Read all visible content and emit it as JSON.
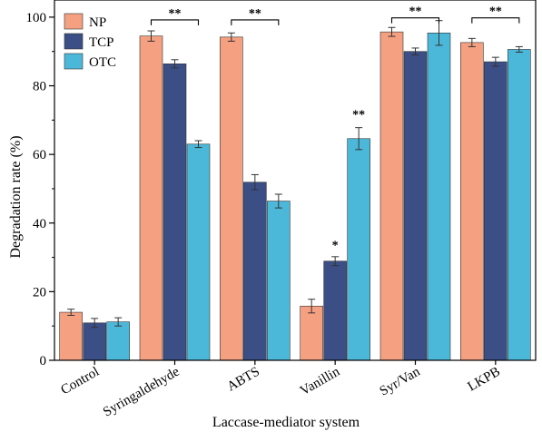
{
  "chart_data": {
    "type": "bar",
    "xlabel": "Laccase-mediator system",
    "ylabel": "Degradation rate (%)",
    "ylim": [
      0,
      105
    ],
    "yticks": [
      0,
      20,
      40,
      60,
      80,
      100
    ],
    "grid": false,
    "legend_position": "top-left",
    "categories": [
      "Control",
      "Syringaldehyde",
      "ABTS",
      "Vanillin",
      "Syr/Van",
      "LKPB"
    ],
    "series": [
      {
        "name": "NP",
        "color": "#f4a081",
        "values": [
          14.0,
          94.5,
          94.2,
          15.8,
          95.7,
          92.6
        ],
        "errors": [
          0.9,
          1.5,
          1.2,
          2.0,
          1.3,
          1.2
        ]
      },
      {
        "name": "TCP",
        "color": "#3b4e86",
        "values": [
          10.9,
          86.4,
          51.9,
          28.9,
          90.0,
          87.0
        ],
        "errors": [
          1.3,
          1.2,
          2.2,
          1.3,
          1.0,
          1.3
        ]
      },
      {
        "name": "OTC",
        "color": "#4cb8d9",
        "values": [
          11.2,
          63.0,
          46.4,
          64.6,
          95.4,
          90.6
        ],
        "errors": [
          1.2,
          1.0,
          2.0,
          3.2,
          3.6,
          0.8
        ]
      }
    ],
    "annotations": [
      {
        "type": "bracket",
        "category": "Syringaldehyde",
        "label": "**",
        "y": 99.2
      },
      {
        "type": "bracket",
        "category": "ABTS",
        "label": "**",
        "y": 99.2
      },
      {
        "type": "bracket",
        "category": "Syr/Van",
        "label": "**",
        "y": 99.8
      },
      {
        "type": "bracket",
        "category": "LKPB",
        "label": "**",
        "y": 99.8
      },
      {
        "type": "star",
        "category": "Vanillin",
        "series": "TCP",
        "label": "*",
        "y": 33.5
      },
      {
        "type": "star",
        "category": "Vanillin",
        "series": "OTC",
        "label": "**",
        "y": 71.5
      }
    ]
  }
}
